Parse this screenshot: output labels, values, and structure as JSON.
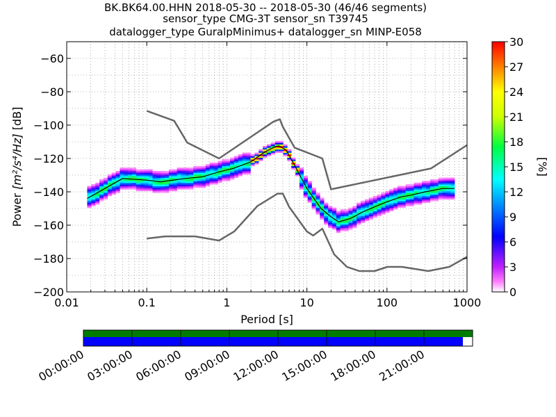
{
  "chart_data": {
    "type": "heatmap",
    "title_lines": [
      "BK.BK64.00.HHN   2018-05-30 -- 2018-05-30  (46/46 segments)",
      "sensor_type CMG-3T sensor_sn T39745",
      "datalogger_type GuralpMinimus+ datalogger_sn MINP-E058"
    ],
    "xlabel": "Period [s]",
    "ylabel_prefix": "Power ",
    "ylabel_units": "[m²/s⁴/Hz]",
    "ylabel_suffix": " [dB]",
    "x_scale": "log",
    "xlim": [
      0.01,
      1000
    ],
    "ylim": [
      -200,
      -50
    ],
    "x_ticks": [
      0.01,
      0.1,
      1,
      10,
      100,
      1000
    ],
    "x_tick_labels": [
      "0.01",
      "0.1",
      "1",
      "10",
      "100",
      "1000"
    ],
    "y_ticks": [
      -200,
      -180,
      -160,
      -140,
      -120,
      -100,
      -80,
      -60
    ],
    "y_tick_labels": [
      "−200",
      "−180",
      "−160",
      "−140",
      "−120",
      "−100",
      "−80",
      "−60"
    ],
    "grid": "dotted",
    "colorbar": {
      "label": "[%]",
      "range": [
        0,
        30
      ],
      "ticks": [
        0,
        3,
        6,
        9,
        12,
        15,
        18,
        21,
        24,
        27,
        30
      ],
      "tick_labels": [
        "0",
        "3",
        "6",
        "9",
        "12",
        "15",
        "18",
        "21",
        "24",
        "27",
        "30"
      ],
      "colormap": "pqlx"
    },
    "noise_model_high": {
      "period": [
        0.1,
        0.22,
        0.32,
        0.8,
        3.8,
        4.6,
        5.0,
        7.0,
        15.6,
        20,
        354,
        1000
      ],
      "power": [
        -91.5,
        -97.4,
        -110.5,
        -120.0,
        -98.0,
        -96.5,
        -101.0,
        -113.5,
        -120.0,
        -138.5,
        -126.0,
        -112.0
      ]
    },
    "noise_model_low": {
      "period": [
        0.1,
        0.17,
        0.4,
        0.8,
        1.24,
        2.4,
        4.3,
        5.0,
        6.0,
        10,
        12,
        15.6,
        21.9,
        31.6,
        45,
        70,
        101,
        154,
        328,
        600,
        1000
      ],
      "power": [
        -168.0,
        -166.7,
        -166.7,
        -169.2,
        -163.7,
        -148.6,
        -141.1,
        -141.1,
        -149.0,
        -163.8,
        -166.2,
        -162.1,
        -177.5,
        -185.0,
        -187.5,
        -187.5,
        -185.0,
        -185.0,
        -187.5,
        -185.0,
        -179.0
      ]
    },
    "mode_line": {
      "period": [
        0.018,
        0.03,
        0.05,
        0.1,
        0.15,
        0.3,
        0.5,
        0.8,
        1.2,
        2,
        3,
        4,
        4.5,
        5.5,
        7,
        10,
        15,
        20,
        25,
        35,
        50,
        70,
        100,
        150,
        200,
        300,
        500,
        700
      ],
      "power": [
        -144,
        -138,
        -132,
        -133,
        -134,
        -132,
        -131,
        -128,
        -126,
        -122,
        -116,
        -113,
        -112.5,
        -115,
        -124,
        -138,
        -150,
        -155,
        -158,
        -156,
        -152,
        -149,
        -146,
        -143,
        -142,
        -140,
        -138,
        -138
      ]
    },
    "time_axis": {
      "tick_labels": [
        "00:00:00",
        "03:00:00",
        "06:00:00",
        "09:00:00",
        "12:00:00",
        "15:00:00",
        "18:00:00",
        "21:00:00"
      ],
      "data_coverage_fraction": 1.0,
      "psd_coverage_fraction": 0.975,
      "data_color": "#007d00",
      "psd_color": "#0000ff"
    }
  },
  "colors": {
    "noise_model": "#666666",
    "mode_line": "#000000",
    "grid": "#777777"
  }
}
